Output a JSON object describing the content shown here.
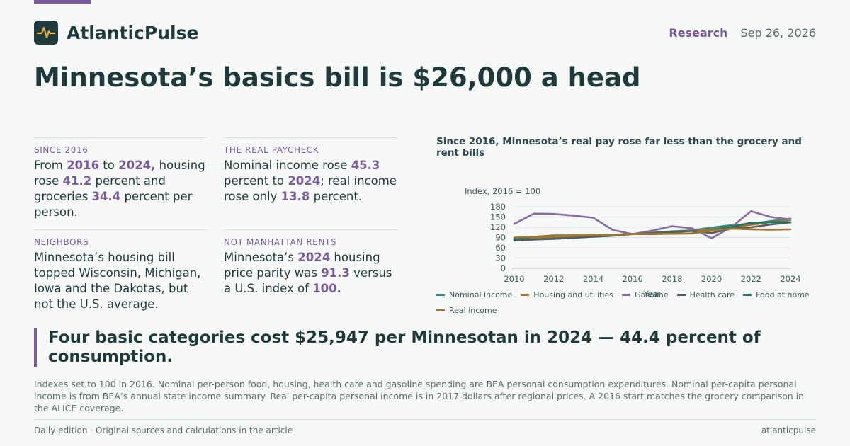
{
  "brand": {
    "name": "AtlanticPulse",
    "logo_icon": "pulse-icon"
  },
  "header": {
    "section": "Research",
    "date": "Sep 26, 2026"
  },
  "headline": "Minnesota’s basics bill is $26,000 a head",
  "cards": [
    {
      "kicker": "SINCE 2016",
      "parts": [
        {
          "t": "From "
        },
        {
          "t": "2016",
          "h": true
        },
        {
          "t": " to "
        },
        {
          "t": "2024,",
          "h": true
        },
        {
          "t": " housing rose "
        },
        {
          "t": "41.2",
          "h": true
        },
        {
          "t": " percent and groceries "
        },
        {
          "t": "34.4",
          "h": true
        },
        {
          "t": " percent per person."
        }
      ]
    },
    {
      "kicker": "THE REAL PAYCHECK",
      "parts": [
        {
          "t": "Nominal income rose "
        },
        {
          "t": "45.3",
          "h": true
        },
        {
          "t": " percent to "
        },
        {
          "t": "2024",
          "h": true
        },
        {
          "t": "; real income rose only "
        },
        {
          "t": "13.8",
          "h": true
        },
        {
          "t": " percent."
        }
      ]
    },
    {
      "kicker": "NEIGHBORS",
      "parts": [
        {
          "t": "Minnesota’s housing bill topped Wisconsin, Michigan, Iowa and the Dakotas, but not the U.S. average."
        }
      ]
    },
    {
      "kicker": "NOT MANHATTAN RENTS",
      "parts": [
        {
          "t": "Minnesota’s "
        },
        {
          "t": "2024",
          "h": true
        },
        {
          "t": " housing price parity was "
        },
        {
          "t": "91.3",
          "h": true
        },
        {
          "t": " versus a U.S. index of "
        },
        {
          "t": "100.",
          "h": true
        }
      ]
    }
  ],
  "chart_data": {
    "type": "line",
    "title": "Since 2016, Minnesota’s real pay rose far less than the grocery and rent bills",
    "ylabel": "Index, 2016 = 100",
    "xlabel": "Year",
    "x": [
      2010,
      2011,
      2012,
      2013,
      2014,
      2015,
      2016,
      2017,
      2018,
      2019,
      2020,
      2021,
      2022,
      2023,
      2024
    ],
    "xticks": [
      2010,
      2012,
      2014,
      2016,
      2018,
      2020,
      2022,
      2024
    ],
    "yticks": [
      0,
      30,
      60,
      90,
      120,
      150,
      180
    ],
    "ylim": [
      0,
      180
    ],
    "xlim": [
      2010,
      2024
    ],
    "grid": true,
    "legend_position": "bottom",
    "series": [
      {
        "name": "Nominal income",
        "color": "#2a8a7e",
        "values": [
          82,
          86,
          88,
          90,
          94,
          97,
          100,
          104,
          108,
          111,
          119,
          126,
          130,
          138,
          145.3
        ]
      },
      {
        "name": "Housing and utilities",
        "color": "#a8742a",
        "values": [
          88,
          90,
          92,
          94,
          96,
          98,
          100,
          103,
          106,
          110,
          114,
          120,
          127,
          135,
          141.2
        ]
      },
      {
        "name": "Gasoline",
        "color": "#8a6aaa",
        "values": [
          130,
          160,
          159,
          154,
          148,
          112,
          100,
          110,
          123,
          117,
          88,
          120,
          167,
          150,
          143
        ]
      },
      {
        "name": "Health care",
        "color": "#4d5e66",
        "values": [
          82,
          84,
          86,
          89,
          92,
          95,
          100,
          103,
          106,
          109,
          103,
          116,
          120,
          128,
          134
        ]
      },
      {
        "name": "Food at home",
        "color": "#1e7266",
        "values": [
          86,
          92,
          96,
          96,
          96,
          98,
          100,
          100,
          101,
          102,
          111,
          121,
          133,
          135,
          134.4
        ]
      },
      {
        "name": "Real income",
        "color": "#a8742a",
        "values": [
          90,
          92,
          95,
          96,
          96,
          98,
          100,
          101,
          101,
          102,
          110,
          116,
          114,
          113,
          113.8
        ]
      }
    ]
  },
  "callout": "Four basic categories cost $25,947 per Minnesotan in 2024 — 44.4 percent of consumption.",
  "note": "Indexes set to 100 in 2016. Nominal per-person food, housing, health care and gasoline spending are BEA personal consumption expenditures. Nominal per-capita personal income is from BEA’s annual state income summary. Real per-capita personal income is in 2017 dollars after regional prices. A 2016 start matches the grocery comparison in the ALICE coverage.",
  "footer": {
    "left": "Daily edition · Original sources and calculations in the article",
    "right": "atlanticpulse"
  }
}
